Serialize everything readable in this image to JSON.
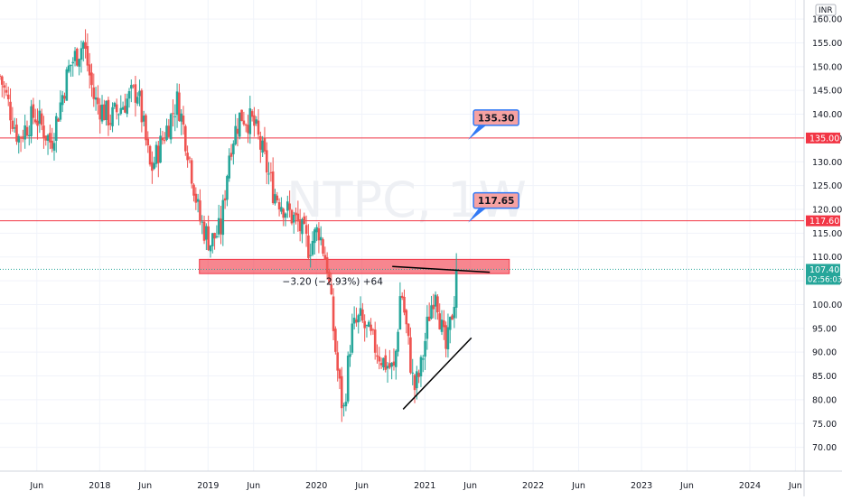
{
  "chart_data": {
    "type": "candlestick",
    "title": "",
    "watermark": "NTPC, 1W",
    "currency": "INR",
    "y_axis_side": "right",
    "ylim": [
      65,
      164
    ],
    "y_ticks": [
      70,
      75,
      80,
      85,
      90,
      95,
      100,
      105,
      110,
      115,
      120,
      125,
      130,
      135,
      140,
      145,
      150,
      155,
      160
    ],
    "x_ticks": [
      {
        "label": "Jun",
        "t": 2017.42
      },
      {
        "label": "2018",
        "t": 2018.0
      },
      {
        "label": "Jun",
        "t": 2018.42
      },
      {
        "label": "2019",
        "t": 2019.0
      },
      {
        "label": "Jun",
        "t": 2019.42
      },
      {
        "label": "2020",
        "t": 2020.0
      },
      {
        "label": "Jun",
        "t": 2020.42
      },
      {
        "label": "2021",
        "t": 2021.0
      },
      {
        "label": "Jun",
        "t": 2021.42
      },
      {
        "label": "2022",
        "t": 2022.0
      },
      {
        "label": "Jun",
        "t": 2022.42
      },
      {
        "label": "2023",
        "t": 2023.0
      },
      {
        "label": "Jun",
        "t": 2023.42
      },
      {
        "label": "2024",
        "t": 2024.0
      },
      {
        "label": "Jun",
        "t": 2024.42
      }
    ],
    "xlim": [
      2017.08,
      2024.5
    ],
    "path": [
      [
        2017.08,
        148
      ],
      [
        2017.25,
        135
      ],
      [
        2017.4,
        140
      ],
      [
        2017.55,
        134
      ],
      [
        2017.72,
        150
      ],
      [
        2017.85,
        155
      ],
      [
        2017.95,
        143
      ],
      [
        2018.1,
        139
      ],
      [
        2018.25,
        143
      ],
      [
        2018.35,
        145
      ],
      [
        2018.47,
        128
      ],
      [
        2018.6,
        136
      ],
      [
        2018.72,
        143
      ],
      [
        2018.82,
        132
      ],
      [
        2018.92,
        118
      ],
      [
        2019.02,
        113
      ],
      [
        2019.12,
        116
      ],
      [
        2019.2,
        133
      ],
      [
        2019.3,
        140
      ],
      [
        2019.42,
        138
      ],
      [
        2019.5,
        132
      ],
      [
        2019.6,
        124
      ],
      [
        2019.72,
        120
      ],
      [
        2019.83,
        117
      ],
      [
        2019.93,
        112
      ],
      [
        2020.02,
        116
      ],
      [
        2020.1,
        108
      ],
      [
        2020.2,
        85
      ],
      [
        2020.25,
        77
      ],
      [
        2020.32,
        94
      ],
      [
        2020.4,
        97
      ],
      [
        2020.52,
        92
      ],
      [
        2020.62,
        88
      ],
      [
        2020.72,
        86
      ],
      [
        2020.78,
        104
      ],
      [
        2020.83,
        95
      ],
      [
        2020.9,
        82
      ],
      [
        2020.96,
        86
      ],
      [
        2021.04,
        98
      ],
      [
        2021.1,
        104
      ],
      [
        2021.16,
        94
      ],
      [
        2021.2,
        90
      ],
      [
        2021.27,
        101
      ],
      [
        2021.3,
        107.4
      ]
    ],
    "colors": {
      "up": "#26a69a",
      "down": "#ef5350",
      "level": "#f23645"
    },
    "horizontal_levels": [
      {
        "value": 135.0,
        "axis_label": "135.00",
        "callout": "135.30",
        "callout_t": 2022.0
      },
      {
        "value": 117.6,
        "axis_label": "117.60",
        "callout": "117.65",
        "callout_t": 2022.0
      }
    ],
    "support_zone": {
      "from": 106.5,
      "to": 109.5,
      "t_start": 2018.92,
      "t_end": 2021.78
    },
    "current_price": {
      "value": 107.4,
      "label": "107.40",
      "countdown": "02:56:03"
    },
    "trendlines": [
      {
        "t1": 2020.8,
        "v1": 78,
        "t2": 2021.43,
        "v2": 93
      },
      {
        "t1": 2020.7,
        "v1": 108,
        "t2": 2021.6,
        "v2": 106.8
      }
    ],
    "measurement": {
      "text": "−3.20 (−2.93%) +64",
      "value": 104,
      "t": 2020.2
    }
  }
}
